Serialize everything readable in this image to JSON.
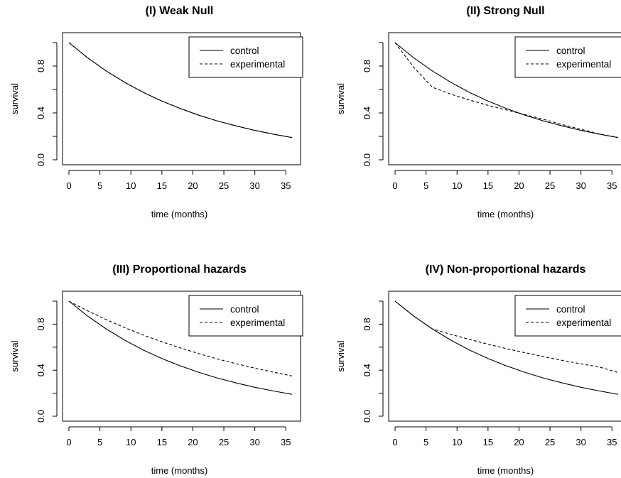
{
  "chart_data": [
    {
      "type": "line",
      "title": "(I) Weak Null",
      "xlabel": "time (months)",
      "ylabel": "survival",
      "xlim": [
        0,
        36
      ],
      "ylim": [
        0,
        1
      ],
      "x_ticks": [
        "0",
        "5",
        "10",
        "15",
        "20",
        "25",
        "30",
        "35"
      ],
      "y_ticks": [
        "0.0",
        "0.4",
        "0.8"
      ],
      "grid": false,
      "legend_position": "top-right",
      "series": [
        {
          "name": "control",
          "style": "solid",
          "x": [
            0,
            3,
            6,
            9,
            12,
            15,
            18,
            21,
            24,
            27,
            30,
            33,
            36
          ],
          "y": [
            1.0,
            0.871,
            0.759,
            0.661,
            0.575,
            0.501,
            0.437,
            0.38,
            0.331,
            0.289,
            0.251,
            0.219,
            0.19
          ]
        },
        {
          "name": "experimental",
          "style": "dashed",
          "x": [
            0,
            3,
            6,
            9,
            12,
            15,
            18,
            21,
            24,
            27,
            30,
            33,
            36
          ],
          "y": [
            1.0,
            0.871,
            0.759,
            0.661,
            0.575,
            0.501,
            0.437,
            0.38,
            0.331,
            0.289,
            0.251,
            0.219,
            0.19
          ]
        }
      ]
    },
    {
      "type": "line",
      "title": "(II) Strong Null",
      "xlabel": "time (months)",
      "ylabel": "survival",
      "xlim": [
        0,
        36
      ],
      "ylim": [
        0,
        1
      ],
      "x_ticks": [
        "0",
        "5",
        "10",
        "15",
        "20",
        "25",
        "30",
        "35"
      ],
      "y_ticks": [
        "0.0",
        "0.4",
        "0.8"
      ],
      "grid": false,
      "legend_position": "top-right",
      "series": [
        {
          "name": "control",
          "style": "solid",
          "x": [
            0,
            3,
            6,
            9,
            12,
            15,
            18,
            21,
            24,
            27,
            30,
            33,
            36
          ],
          "y": [
            1.0,
            0.871,
            0.759,
            0.661,
            0.575,
            0.501,
            0.437,
            0.38,
            0.331,
            0.289,
            0.251,
            0.219,
            0.19
          ]
        },
        {
          "name": "experimental",
          "style": "dashed",
          "x": [
            0,
            3,
            6,
            9,
            12,
            15,
            18,
            21,
            24,
            27,
            30,
            33,
            36
          ],
          "y": [
            1.0,
            0.79,
            0.62,
            0.56,
            0.51,
            0.465,
            0.425,
            0.385,
            0.345,
            0.3,
            0.26,
            0.22,
            0.19
          ]
        }
      ]
    },
    {
      "type": "line",
      "title": "(III) Proportional hazards",
      "xlabel": "time (months)",
      "ylabel": "survival",
      "xlim": [
        0,
        36
      ],
      "ylim": [
        0,
        1
      ],
      "x_ticks": [
        "0",
        "5",
        "10",
        "15",
        "20",
        "25",
        "30",
        "35"
      ],
      "y_ticks": [
        "0.0",
        "0.4",
        "0.8"
      ],
      "grid": false,
      "legend_position": "top-right",
      "series": [
        {
          "name": "control",
          "style": "solid",
          "x": [
            0,
            3,
            6,
            9,
            12,
            15,
            18,
            21,
            24,
            27,
            30,
            33,
            36
          ],
          "y": [
            1.0,
            0.871,
            0.759,
            0.661,
            0.575,
            0.501,
            0.437,
            0.38,
            0.331,
            0.289,
            0.251,
            0.219,
            0.19
          ]
        },
        {
          "name": "experimental",
          "style": "dashed",
          "x": [
            0,
            3,
            6,
            9,
            12,
            15,
            18,
            21,
            24,
            27,
            30,
            33,
            36
          ],
          "y": [
            1.0,
            0.916,
            0.84,
            0.77,
            0.705,
            0.647,
            0.593,
            0.543,
            0.497,
            0.456,
            0.418,
            0.383,
            0.35
          ]
        }
      ]
    },
    {
      "type": "line",
      "title": "(IV) Non-proportional hazards",
      "xlabel": "time (months)",
      "ylabel": "survival",
      "xlim": [
        0,
        36
      ],
      "ylim": [
        0,
        1
      ],
      "x_ticks": [
        "0",
        "5",
        "10",
        "15",
        "20",
        "25",
        "30",
        "35"
      ],
      "y_ticks": [
        "0.0",
        "0.4",
        "0.8"
      ],
      "grid": false,
      "legend_position": "top-right",
      "series": [
        {
          "name": "control",
          "style": "solid",
          "x": [
            0,
            3,
            6,
            9,
            12,
            15,
            18,
            21,
            24,
            27,
            30,
            33,
            36
          ],
          "y": [
            1.0,
            0.871,
            0.759,
            0.661,
            0.575,
            0.501,
            0.437,
            0.38,
            0.331,
            0.289,
            0.251,
            0.219,
            0.19
          ]
        },
        {
          "name": "experimental",
          "style": "dashed",
          "x": [
            0,
            3,
            6,
            9,
            12,
            15,
            18,
            21,
            24,
            27,
            30,
            33,
            36
          ],
          "y": [
            1.0,
            0.871,
            0.759,
            0.711,
            0.667,
            0.626,
            0.587,
            0.551,
            0.517,
            0.485,
            0.455,
            0.427,
            0.38
          ]
        }
      ]
    }
  ]
}
